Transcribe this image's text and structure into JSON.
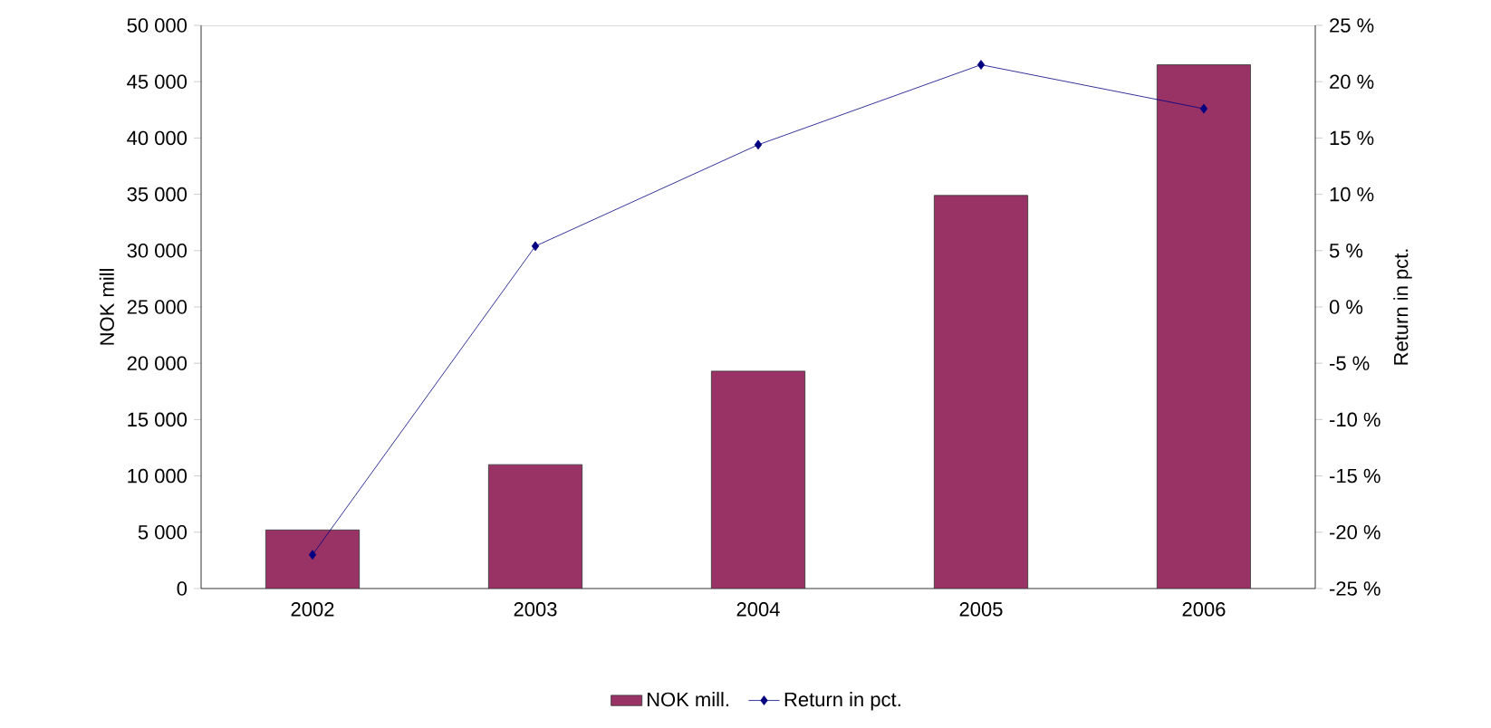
{
  "chart_data": {
    "type": "bar",
    "categories": [
      "2002",
      "2003",
      "2004",
      "2005",
      "2006"
    ],
    "series": [
      {
        "name": "NOK mill.",
        "color": "#993366",
        "values": [
          5200,
          11000,
          19300,
          34900,
          46500
        ]
      },
      {
        "name": "Return in pct.",
        "type": "line",
        "axis": "y2",
        "color": "#000080",
        "values": [
          -22,
          5.4,
          14.4,
          21.5,
          17.6
        ]
      }
    ],
    "ylabel": "NOK mill",
    "y2label": "Return in pct.",
    "ylim": [
      0,
      50000
    ],
    "yticks": [
      0,
      {
        "value": 5000,
        "label": "5 000"
      },
      {
        "value": 10000,
        "label": "10 000"
      },
      {
        "value": 15000,
        "label": "15 000"
      },
      {
        "value": 20000,
        "label": "20 000"
      },
      {
        "value": 25000,
        "label": "25 000"
      },
      {
        "value": 30000,
        "label": "30 000"
      },
      {
        "value": 35000,
        "label": "35 000"
      },
      {
        "value": 40000,
        "label": "40 000"
      },
      {
        "value": 45000,
        "label": "45 000"
      },
      {
        "value": 50000,
        "label": "50 000"
      }
    ],
    "y2lim": [
      -25,
      25
    ],
    "y2ticks": [
      {
        "value": -25,
        "label": "-25 %"
      },
      {
        "value": -20,
        "label": "-20 %"
      },
      {
        "value": -15,
        "label": "-15 %"
      },
      {
        "value": -10,
        "label": "-10 %"
      },
      {
        "value": -5,
        "label": "-5 %"
      },
      {
        "value": 0,
        "label": "0 %"
      },
      {
        "value": 5,
        "label": "5 %"
      },
      {
        "value": 10,
        "label": "10 %"
      },
      {
        "value": 15,
        "label": "15 %"
      },
      {
        "value": 20,
        "label": "20 %"
      },
      {
        "value": 25,
        "label": "25 %"
      }
    ],
    "marker": "diamond",
    "line_style": "solid",
    "legend": "bottom",
    "grid": false
  }
}
